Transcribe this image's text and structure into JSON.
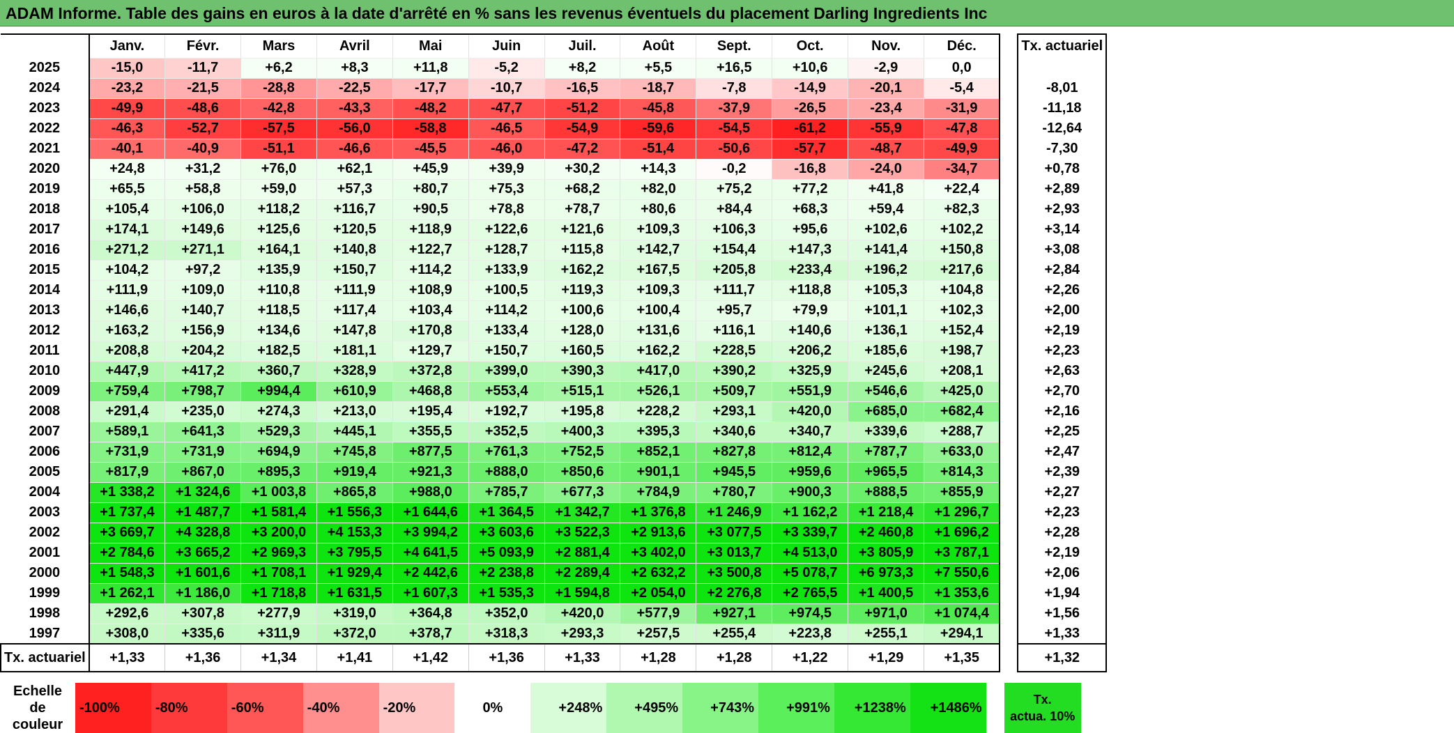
{
  "title": "ADAM Informe. Table des gains en euros à la date d'arrêté en % sans les revenus éventuels du placement Darling Ingredients Inc",
  "chart_data": {
    "type": "table",
    "months": [
      "Janv.",
      "Févr.",
      "Mars",
      "Avril",
      "Mai",
      "Juin",
      "Juil.",
      "Août",
      "Sept.",
      "Oct.",
      "Nov.",
      "Déc."
    ],
    "tx_header": "Tx. actuariel",
    "rows": [
      {
        "year": "2025",
        "values": [
          "-15,0",
          "-11,7",
          "+6,2",
          "+8,3",
          "+11,8",
          "-5,2",
          "+8,2",
          "+5,5",
          "+16,5",
          "+10,6",
          "-2,9",
          "0,0"
        ],
        "tx": ""
      },
      {
        "year": "2024",
        "values": [
          "-23,2",
          "-21,5",
          "-28,8",
          "-22,5",
          "-17,7",
          "-10,7",
          "-16,5",
          "-18,7",
          "-7,8",
          "-14,9",
          "-20,1",
          "-5,4"
        ],
        "tx": "-8,01"
      },
      {
        "year": "2023",
        "values": [
          "-49,9",
          "-48,6",
          "-42,8",
          "-43,3",
          "-48,2",
          "-47,7",
          "-51,2",
          "-45,8",
          "-37,9",
          "-26,5",
          "-23,4",
          "-31,9"
        ],
        "tx": "-11,18"
      },
      {
        "year": "2022",
        "values": [
          "-46,3",
          "-52,7",
          "-57,5",
          "-56,0",
          "-58,8",
          "-46,5",
          "-54,9",
          "-59,6",
          "-54,5",
          "-61,2",
          "-55,9",
          "-47,8"
        ],
        "tx": "-12,64"
      },
      {
        "year": "2021",
        "values": [
          "-40,1",
          "-40,9",
          "-51,1",
          "-46,6",
          "-45,5",
          "-46,0",
          "-47,2",
          "-51,4",
          "-50,6",
          "-57,7",
          "-48,7",
          "-49,9"
        ],
        "tx": "-7,30"
      },
      {
        "year": "2020",
        "values": [
          "+24,8",
          "+31,2",
          "+76,0",
          "+62,1",
          "+45,9",
          "+39,9",
          "+30,2",
          "+14,3",
          "-0,2",
          "-16,8",
          "-24,0",
          "-34,7"
        ],
        "tx": "+0,78"
      },
      {
        "year": "2019",
        "values": [
          "+65,5",
          "+58,8",
          "+59,0",
          "+57,3",
          "+80,7",
          "+75,3",
          "+68,2",
          "+82,0",
          "+75,2",
          "+77,2",
          "+41,8",
          "+22,4"
        ],
        "tx": "+2,89"
      },
      {
        "year": "2018",
        "values": [
          "+105,4",
          "+106,0",
          "+118,2",
          "+116,7",
          "+90,5",
          "+78,8",
          "+78,7",
          "+80,6",
          "+84,4",
          "+68,3",
          "+59,4",
          "+82,3"
        ],
        "tx": "+2,93"
      },
      {
        "year": "2017",
        "values": [
          "+174,1",
          "+149,6",
          "+125,6",
          "+120,5",
          "+118,9",
          "+122,6",
          "+121,6",
          "+109,3",
          "+106,3",
          "+95,6",
          "+102,6",
          "+102,2"
        ],
        "tx": "+3,14"
      },
      {
        "year": "2016",
        "values": [
          "+271,2",
          "+271,1",
          "+164,1",
          "+140,8",
          "+122,7",
          "+128,7",
          "+115,8",
          "+142,7",
          "+154,4",
          "+147,3",
          "+141,4",
          "+150,8"
        ],
        "tx": "+3,08"
      },
      {
        "year": "2015",
        "values": [
          "+104,2",
          "+97,2",
          "+135,9",
          "+150,7",
          "+114,2",
          "+133,9",
          "+162,2",
          "+167,5",
          "+205,8",
          "+233,4",
          "+196,2",
          "+217,6"
        ],
        "tx": "+2,84"
      },
      {
        "year": "2014",
        "values": [
          "+111,9",
          "+109,0",
          "+110,8",
          "+111,9",
          "+108,9",
          "+100,5",
          "+119,3",
          "+109,3",
          "+111,7",
          "+118,8",
          "+105,3",
          "+104,8"
        ],
        "tx": "+2,26"
      },
      {
        "year": "2013",
        "values": [
          "+146,6",
          "+140,7",
          "+118,5",
          "+117,4",
          "+103,4",
          "+114,2",
          "+100,6",
          "+100,4",
          "+95,7",
          "+79,9",
          "+101,1",
          "+102,3"
        ],
        "tx": "+2,00"
      },
      {
        "year": "2012",
        "values": [
          "+163,2",
          "+156,9",
          "+134,6",
          "+147,8",
          "+170,8",
          "+133,4",
          "+128,0",
          "+131,6",
          "+116,1",
          "+140,6",
          "+136,1",
          "+152,4"
        ],
        "tx": "+2,19"
      },
      {
        "year": "2011",
        "values": [
          "+208,8",
          "+204,2",
          "+182,5",
          "+181,1",
          "+129,7",
          "+150,7",
          "+160,5",
          "+162,2",
          "+228,5",
          "+206,2",
          "+185,6",
          "+198,7"
        ],
        "tx": "+2,23"
      },
      {
        "year": "2010",
        "values": [
          "+447,9",
          "+417,2",
          "+360,7",
          "+328,9",
          "+372,8",
          "+399,0",
          "+390,3",
          "+417,0",
          "+390,2",
          "+325,9",
          "+245,6",
          "+208,1"
        ],
        "tx": "+2,63"
      },
      {
        "year": "2009",
        "values": [
          "+759,4",
          "+798,7",
          "+994,4",
          "+610,9",
          "+468,8",
          "+553,4",
          "+515,1",
          "+526,1",
          "+509,7",
          "+551,9",
          "+546,6",
          "+425,0"
        ],
        "tx": "+2,70"
      },
      {
        "year": "2008",
        "values": [
          "+291,4",
          "+235,0",
          "+274,3",
          "+213,0",
          "+195,4",
          "+192,7",
          "+195,8",
          "+228,2",
          "+293,1",
          "+420,0",
          "+685,0",
          "+682,4"
        ],
        "tx": "+2,16"
      },
      {
        "year": "2007",
        "values": [
          "+589,1",
          "+641,3",
          "+529,3",
          "+445,1",
          "+355,5",
          "+352,5",
          "+400,3",
          "+395,3",
          "+340,6",
          "+340,7",
          "+339,6",
          "+288,7"
        ],
        "tx": "+2,25"
      },
      {
        "year": "2006",
        "values": [
          "+731,9",
          "+731,9",
          "+694,9",
          "+745,8",
          "+877,5",
          "+761,3",
          "+752,5",
          "+852,1",
          "+827,8",
          "+812,4",
          "+787,7",
          "+633,0"
        ],
        "tx": "+2,47"
      },
      {
        "year": "2005",
        "values": [
          "+817,9",
          "+867,0",
          "+895,3",
          "+919,4",
          "+921,3",
          "+888,0",
          "+850,6",
          "+901,1",
          "+945,5",
          "+959,6",
          "+965,5",
          "+814,3"
        ],
        "tx": "+2,39"
      },
      {
        "year": "2004",
        "values": [
          "+1 338,2",
          "+1 324,6",
          "+1 003,8",
          "+865,8",
          "+988,0",
          "+785,7",
          "+677,3",
          "+784,9",
          "+780,7",
          "+900,3",
          "+888,5",
          "+855,9"
        ],
        "tx": "+2,27"
      },
      {
        "year": "2003",
        "values": [
          "+1 737,4",
          "+1 487,7",
          "+1 581,4",
          "+1 556,3",
          "+1 644,6",
          "+1 364,5",
          "+1 342,7",
          "+1 376,8",
          "+1 246,9",
          "+1 162,2",
          "+1 218,4",
          "+1 296,7"
        ],
        "tx": "+2,23"
      },
      {
        "year": "2002",
        "values": [
          "+3 669,7",
          "+4 328,8",
          "+3 200,0",
          "+4 153,3",
          "+3 994,2",
          "+3 603,6",
          "+3 522,3",
          "+2 913,6",
          "+3 077,5",
          "+3 339,7",
          "+2 460,8",
          "+1 696,2"
        ],
        "tx": "+2,28"
      },
      {
        "year": "2001",
        "values": [
          "+2 784,6",
          "+3 665,2",
          "+2 969,3",
          "+3 795,5",
          "+4 641,5",
          "+5 093,9",
          "+2 881,4",
          "+3 402,0",
          "+3 013,7",
          "+4 513,0",
          "+3 805,9",
          "+3 787,1"
        ],
        "tx": "+2,19"
      },
      {
        "year": "2000",
        "values": [
          "+1 548,3",
          "+1 601,6",
          "+1 708,1",
          "+1 929,4",
          "+2 442,6",
          "+2 238,8",
          "+2 289,4",
          "+2 632,2",
          "+3 500,8",
          "+5 078,7",
          "+6 973,3",
          "+7 550,6"
        ],
        "tx": "+2,06"
      },
      {
        "year": "1999",
        "values": [
          "+1 262,1",
          "+1 186,0",
          "+1 718,8",
          "+1 631,5",
          "+1 607,3",
          "+1 535,3",
          "+1 594,8",
          "+2 054,0",
          "+2 276,8",
          "+2 765,5",
          "+1 400,5",
          "+1 353,6"
        ],
        "tx": "+1,94"
      },
      {
        "year": "1998",
        "values": [
          "+292,6",
          "+307,8",
          "+277,9",
          "+319,0",
          "+364,8",
          "+352,0",
          "+420,0",
          "+577,9",
          "+927,1",
          "+974,5",
          "+971,0",
          "+1 074,4"
        ],
        "tx": "+1,56"
      },
      {
        "year": "1997",
        "values": [
          "+308,0",
          "+335,6",
          "+311,9",
          "+372,0",
          "+378,7",
          "+318,3",
          "+293,3",
          "+257,5",
          "+255,4",
          "+223,8",
          "+255,1",
          "+294,1"
        ],
        "tx": "+1,33"
      }
    ],
    "footer": {
      "label": "Tx. actuariel",
      "values": [
        "+1,33",
        "+1,36",
        "+1,34",
        "+1,41",
        "+1,42",
        "+1,36",
        "+1,33",
        "+1,28",
        "+1,28",
        "+1,22",
        "+1,29",
        "+1,35"
      ],
      "tx": "+1,32"
    },
    "scale": {
      "label_line1": "Echelle de",
      "label_line2": "couleur",
      "steps": [
        {
          "label": "-100%",
          "color": "#ff2020"
        },
        {
          "label": "-80%",
          "color": "#ff3a3a"
        },
        {
          "label": "-60%",
          "color": "#ff5656"
        },
        {
          "label": "-40%",
          "color": "#ff8e8e"
        },
        {
          "label": "-20%",
          "color": "#ffc6c6"
        },
        {
          "label": "0%",
          "color": "#ffffff"
        },
        {
          "label": "+248%",
          "color": "#d8fcd8"
        },
        {
          "label": "+495%",
          "color": "#b0f8b0"
        },
        {
          "label": "+743%",
          "color": "#88f488"
        },
        {
          "label": "+991%",
          "color": "#5cef5c"
        },
        {
          "label": "+1238%",
          "color": "#34e834"
        },
        {
          "label": "+1486%",
          "color": "#14e214"
        }
      ],
      "tx_label_line1": "Tx.",
      "tx_label_line2": "actua. 10%"
    }
  }
}
